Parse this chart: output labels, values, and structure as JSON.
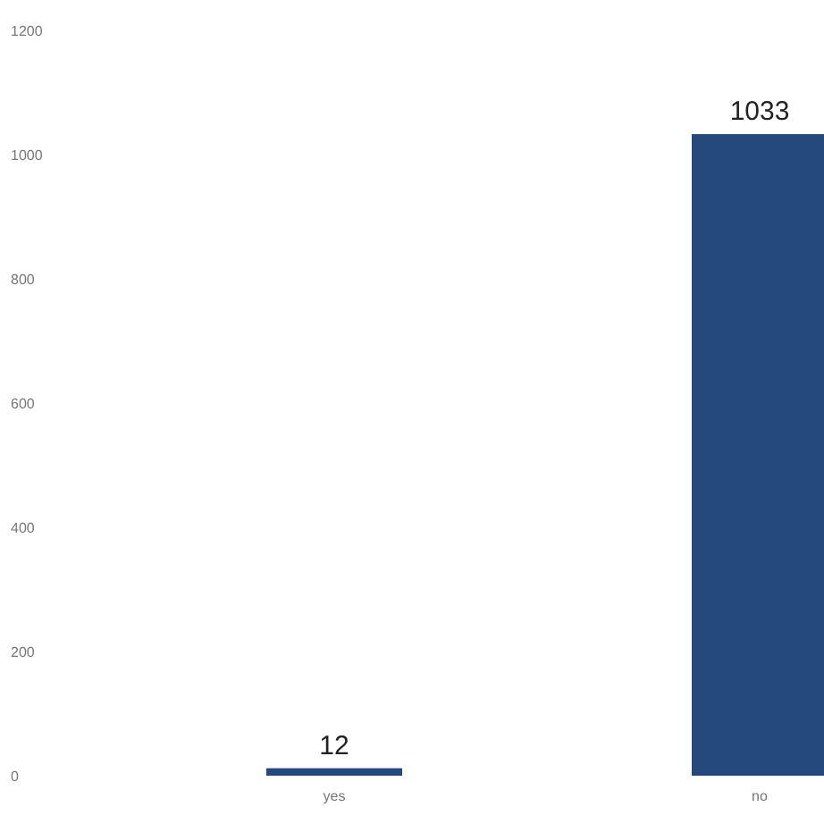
{
  "chart_data": {
    "type": "bar",
    "categories": [
      "yes",
      "no"
    ],
    "values": [
      12,
      1033
    ],
    "color": "#24497a",
    "ylim": [
      0,
      1200
    ],
    "yticks": [
      0,
      200,
      400,
      600,
      800,
      1000,
      1200
    ],
    "data_labels": true,
    "grid": false
  }
}
